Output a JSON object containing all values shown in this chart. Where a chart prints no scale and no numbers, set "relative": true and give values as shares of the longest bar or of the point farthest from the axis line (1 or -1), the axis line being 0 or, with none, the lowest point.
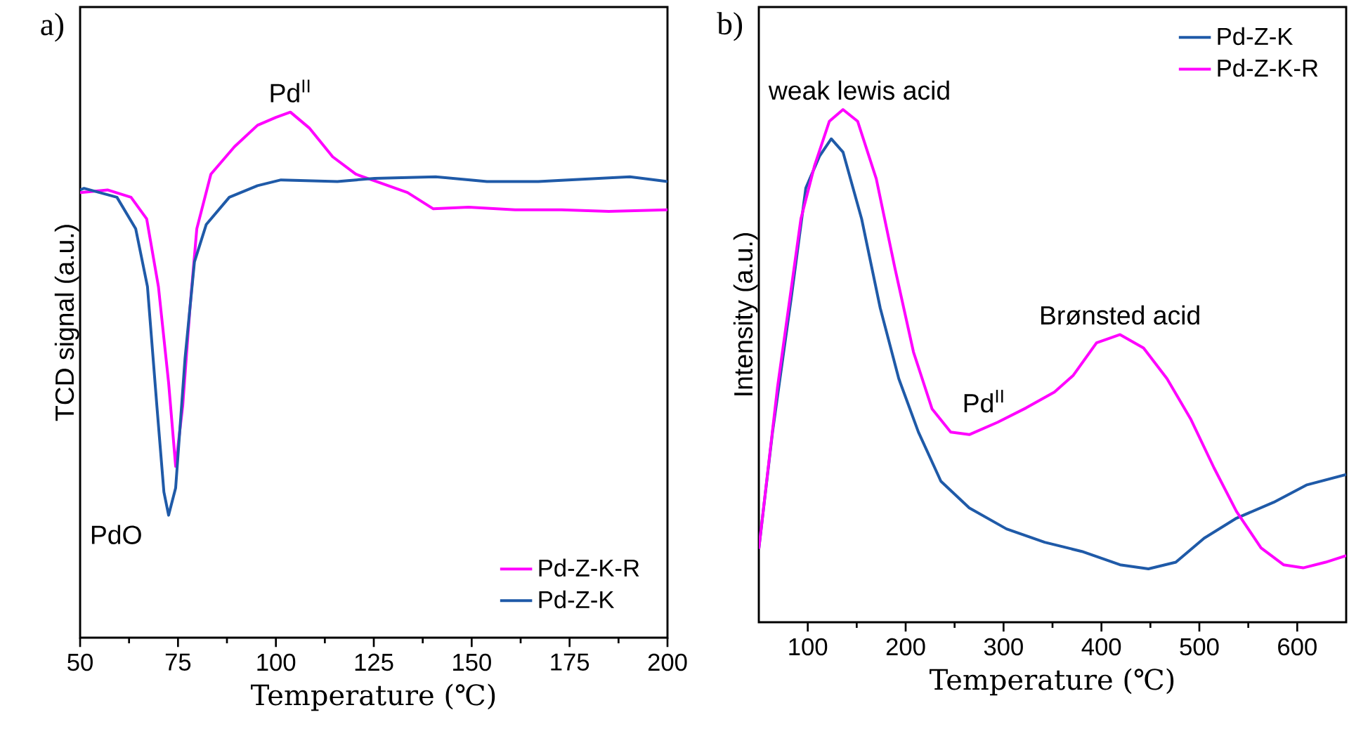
{
  "chart_data": [
    {
      "type": "line",
      "title": "a)",
      "xlabel": "Temperature (℃)",
      "ylabel": "TCD signal (a.u.)",
      "relative": true,
      "xlim": [
        50,
        200
      ],
      "xticks": [
        50,
        75,
        100,
        125,
        150,
        175,
        200
      ],
      "legend": "bottom right",
      "series": [
        {
          "name": "Pd-Z-K-R",
          "color": "#ff00ff",
          "x": [
            50,
            57,
            63,
            67,
            70,
            72.6,
            74.4,
            76.2,
            78,
            79.8,
            83.4,
            89.4,
            95.3,
            100,
            103.7,
            108.5,
            114.5,
            120.4,
            126.4,
            133.6,
            140.2,
            149.2,
            161.1,
            173,
            185,
            200
          ],
          "values": [
            0.847,
            0.852,
            0.838,
            0.797,
            0.668,
            0.485,
            0.326,
            0.441,
            0.622,
            0.778,
            0.882,
            0.934,
            0.975,
            0.99,
            1.0,
            0.97,
            0.915,
            0.882,
            0.866,
            0.847,
            0.816,
            0.819,
            0.814,
            0.814,
            0.811,
            0.814
          ]
        },
        {
          "name": "Pd-Z-K",
          "color": "#1f5aa8",
          "x": [
            50,
            51,
            59.4,
            64.2,
            67.2,
            69.6,
            71.4,
            72.6,
            74.4,
            76.8,
            79.2,
            82.2,
            88.1,
            95.3,
            101.3,
            115.7,
            125.2,
            140.8,
            153.9,
            167,
            190.4,
            200
          ],
          "values": [
            0.852,
            0.855,
            0.838,
            0.778,
            0.668,
            0.441,
            0.277,
            0.233,
            0.285,
            0.532,
            0.715,
            0.786,
            0.838,
            0.86,
            0.871,
            0.868,
            0.874,
            0.877,
            0.868,
            0.868,
            0.877,
            0.868
          ]
        }
      ],
      "annotations": [
        {
          "text": "Pd$^{II}$",
          "x": 103.7,
          "y": 1.0
        },
        {
          "text": "PdO",
          "x": 72.6,
          "y": 0.233
        }
      ]
    },
    {
      "type": "line",
      "title": "b)",
      "xlabel": "Temperature (℃)",
      "ylabel": "Intensity (a.u.)",
      "relative": true,
      "xlim": [
        50,
        650
      ],
      "xticks": [
        100,
        200,
        300,
        400,
        500,
        600
      ],
      "legend": "top right",
      "series": [
        {
          "name": "Pd-Z-K",
          "color": "#1f5aa8",
          "x": [
            50,
            64,
            83,
            98,
            112,
            124,
            136,
            155,
            174,
            193,
            213,
            236,
            265,
            303,
            342,
            380,
            419,
            448,
            476,
            505,
            538,
            576,
            610,
            650
          ],
          "values": [
            0.143,
            0.371,
            0.631,
            0.847,
            0.909,
            0.943,
            0.917,
            0.787,
            0.613,
            0.475,
            0.371,
            0.275,
            0.223,
            0.182,
            0.156,
            0.138,
            0.112,
            0.104,
            0.117,
            0.164,
            0.203,
            0.234,
            0.268,
            0.288
          ]
        },
        {
          "name": "Pd-Z-K-R",
          "color": "#ff00ff",
          "x": [
            50,
            69,
            93,
            107,
            122,
            136,
            151,
            170,
            189,
            208,
            227,
            246,
            265,
            294,
            323,
            352,
            371,
            395,
            419,
            443,
            467,
            491,
            515,
            538,
            563,
            586,
            606,
            629,
            650
          ],
          "values": [
            0.143,
            0.457,
            0.787,
            0.891,
            0.977,
            1.0,
            0.977,
            0.865,
            0.691,
            0.527,
            0.416,
            0.371,
            0.366,
            0.39,
            0.418,
            0.449,
            0.481,
            0.545,
            0.561,
            0.535,
            0.475,
            0.397,
            0.301,
            0.216,
            0.145,
            0.112,
            0.106,
            0.117,
            0.13
          ]
        }
      ],
      "annotations": [
        {
          "text": "weak lewis acid",
          "x": 136,
          "y": 1.0
        },
        {
          "text": "Pd$^{II}$",
          "x": 280,
          "y": 0.39
        },
        {
          "text": "Brønsted acid",
          "x": 419,
          "y": 0.561
        }
      ]
    }
  ]
}
